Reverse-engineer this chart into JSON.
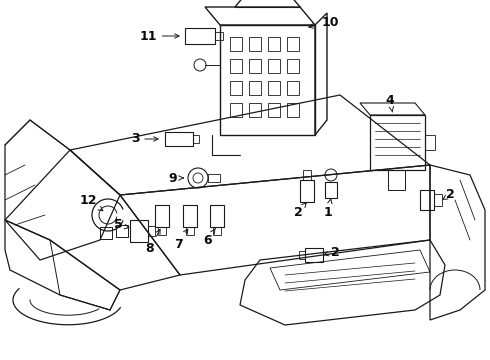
{
  "background_color": "#ffffff",
  "line_color": "#1a1a1a",
  "label_color": "#0a0a0a",
  "fig_w": 4.9,
  "fig_h": 3.6,
  "dpi": 100
}
